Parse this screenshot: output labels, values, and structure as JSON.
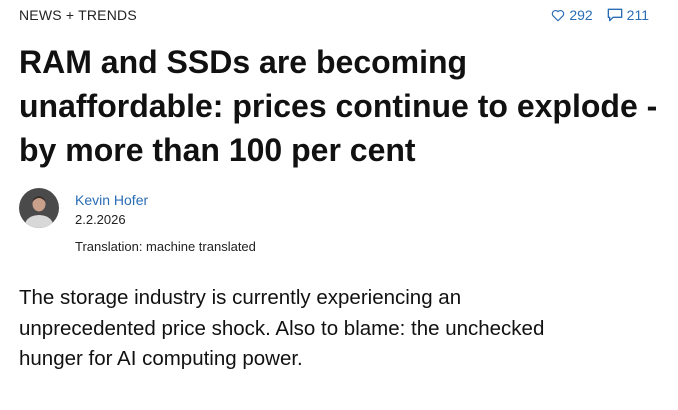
{
  "header": {
    "category": "NEWS + TRENDS",
    "likes": 292,
    "comments": 211
  },
  "article": {
    "title": "RAM and SSDs are becoming unaffordable: prices continue to explode - by more than 100 per cent",
    "author": "Kevin Hofer",
    "date": "2.2.2026",
    "translation": "Translation: machine translated",
    "lead": "The storage industry is currently experiencing an unprecedented price shock. Also to blame: the unchecked hunger for AI computing power."
  }
}
